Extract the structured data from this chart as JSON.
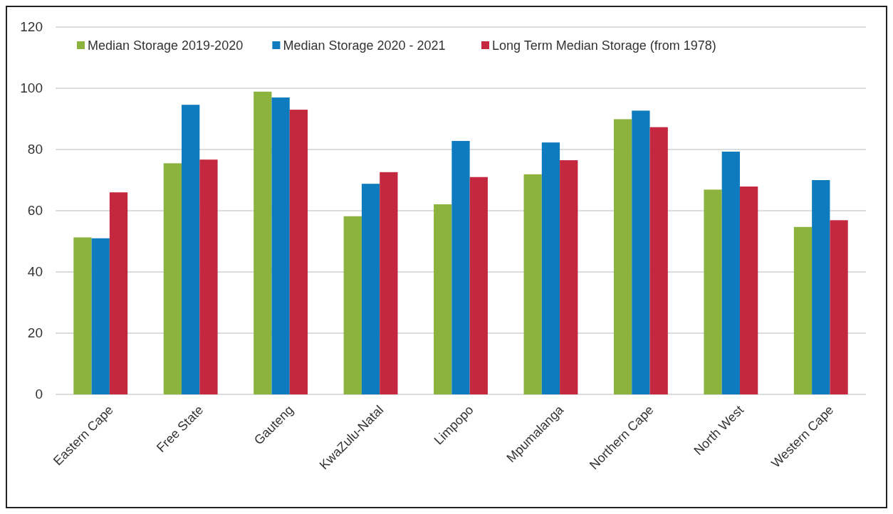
{
  "chart_data": {
    "type": "bar",
    "categories": [
      "Eastern Cape",
      "Free State",
      "Gauteng",
      "KwaZulu-Natal",
      "Limpopo",
      "Mpumalanga",
      "Northern Cape",
      "North West",
      "Western Cape"
    ],
    "series": [
      {
        "name": "Median Storage 2019-2020",
        "color": "#8db33f",
        "values": [
          51.3,
          75.5,
          98.9,
          58.2,
          62.1,
          71.9,
          89.9,
          66.9,
          54.7
        ]
      },
      {
        "name": "Median Storage 2020 - 2021",
        "color": "#0f7bbf",
        "values": [
          51,
          94.6,
          97,
          68.8,
          82.8,
          82.3,
          92.7,
          79.3,
          70
        ]
      },
      {
        "name": "Long Term Median Storage (from 1978)",
        "color": "#c4283e",
        "values": [
          66,
          76.7,
          93,
          72.6,
          71,
          76.5,
          87.3,
          67.9,
          56.9
        ]
      }
    ],
    "ylim": [
      0,
      120
    ],
    "yticks": [
      0,
      20,
      40,
      60,
      80,
      100,
      120
    ],
    "grid": "y",
    "legend": "top"
  }
}
